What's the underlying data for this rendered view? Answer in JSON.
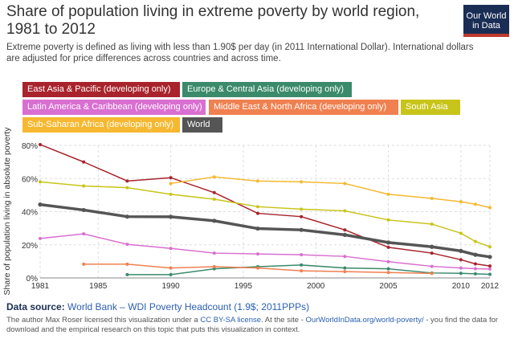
{
  "header": {
    "title": "Share of population living in extreme poverty by world region, 1981 to 2012",
    "subtitle": "Extreme poverty is defined as living with less than 1.90$ per day (in 2011 International Dollar). International dollars are adjusted for price differences across countries and across time.",
    "logo_line1": "Our World",
    "logo_line2": "in Data"
  },
  "legend": [
    {
      "label": "East Asia & Pacific (developing only)",
      "color": "#a8232c"
    },
    {
      "label": "Europe & Central Asia (developing only)",
      "color": "#3a8a6b"
    },
    {
      "label": "Latin America & Caribbean (developing only)",
      "color": "#d96fd1"
    },
    {
      "label": "Middle East & North Africa (developing only)",
      "color": "#f08050"
    },
    {
      "label": "South Asia",
      "color": "#c8c41a"
    },
    {
      "label": "Sub-Saharan Africa (developing only)",
      "color": "#f5b830"
    },
    {
      "label": "World",
      "color": "#555555"
    }
  ],
  "chart_data": {
    "type": "line",
    "ylabel": "Share of population living in absolute poverty",
    "xlim": [
      1981,
      2012
    ],
    "ylim": [
      0,
      80
    ],
    "x_ticks": [
      1981,
      1985,
      1990,
      1995,
      2000,
      2005,
      2010,
      2012
    ],
    "y_ticks": [
      0,
      20,
      40,
      60,
      80
    ],
    "y_tick_labels": [
      "0%",
      "20%",
      "40%",
      "60%",
      "80%"
    ],
    "grid": true,
    "series": [
      {
        "name": "East Asia & Pacific (developing only)",
        "color": "#a8232c",
        "x": [
          1981,
          1984,
          1987,
          1990,
          1993,
          1996,
          1999,
          2002,
          2005,
          2008,
          2010,
          2011,
          2012
        ],
        "y": [
          80.5,
          70,
          58.5,
          60.5,
          51.5,
          39,
          37,
          29,
          18.5,
          15,
          11,
          8.5,
          7.2
        ]
      },
      {
        "name": "Europe & Central Asia (developing only)",
        "color": "#3a8a6b",
        "x": [
          1987,
          1990,
          1993,
          1996,
          1999,
          2002,
          2005,
          2008,
          2010,
          2011,
          2012
        ],
        "y": [
          2,
          2,
          5.5,
          6.8,
          7.8,
          6,
          5.5,
          3,
          2.8,
          2.5,
          2.2
        ]
      },
      {
        "name": "Latin America & Caribbean (developing only)",
        "color": "#d96fd1",
        "x": [
          1981,
          1984,
          1987,
          1990,
          1993,
          1996,
          1999,
          2002,
          2005,
          2008,
          2010,
          2011,
          2012
        ],
        "y": [
          23.8,
          26.6,
          20.3,
          17.8,
          15,
          14.5,
          14,
          13,
          9.8,
          7,
          6,
          5.6,
          5.4
        ]
      },
      {
        "name": "Middle East & North Africa (developing only)",
        "color": "#f08050",
        "x": [
          1984,
          1987,
          1990,
          1993,
          1996,
          1999,
          2002,
          2005,
          2008
        ],
        "y": [
          8.3,
          8.3,
          6,
          6.8,
          6,
          4.3,
          3.8,
          3.3,
          2.7
        ]
      },
      {
        "name": "South Asia",
        "color": "#c8c41a",
        "x": [
          1981,
          1984,
          1987,
          1990,
          1993,
          1996,
          1999,
          2002,
          2005,
          2008,
          2010,
          2011,
          2012
        ],
        "y": [
          58,
          55.5,
          54.5,
          50.5,
          47.5,
          43,
          41.5,
          40.5,
          35,
          32.5,
          27,
          22,
          18.8
        ]
      },
      {
        "name": "Sub-Saharan Africa (developing only)",
        "color": "#f5b830",
        "x": [
          1990,
          1993,
          1996,
          1999,
          2002,
          2005,
          2008,
          2010,
          2011,
          2012
        ],
        "y": [
          57,
          61,
          58.5,
          58,
          57,
          50.5,
          48,
          46,
          44.5,
          42.5
        ]
      },
      {
        "name": "World",
        "color": "#555555",
        "x": [
          1981,
          1984,
          1987,
          1990,
          1993,
          1996,
          1999,
          2002,
          2005,
          2008,
          2010,
          2011,
          2012
        ],
        "y": [
          44.3,
          41,
          37,
          36.9,
          34.5,
          29.8,
          29,
          26,
          21.4,
          18.8,
          16.3,
          14,
          12.7
        ]
      }
    ]
  },
  "footer": {
    "source_label": "Data source:",
    "source_text": "World Bank – WDI Poverty Headcount (1.9$; 2011PPPs)",
    "license_pre": "The author Max Roser licensed this visualization under a ",
    "license_link": "CC BY-SA license",
    "license_mid": ". At the site - ",
    "site_link": "OurWorldInData.org/world-poverty/",
    "license_post": " - you find the data for download and the empirical research on this topic that puts this visualization in context."
  }
}
